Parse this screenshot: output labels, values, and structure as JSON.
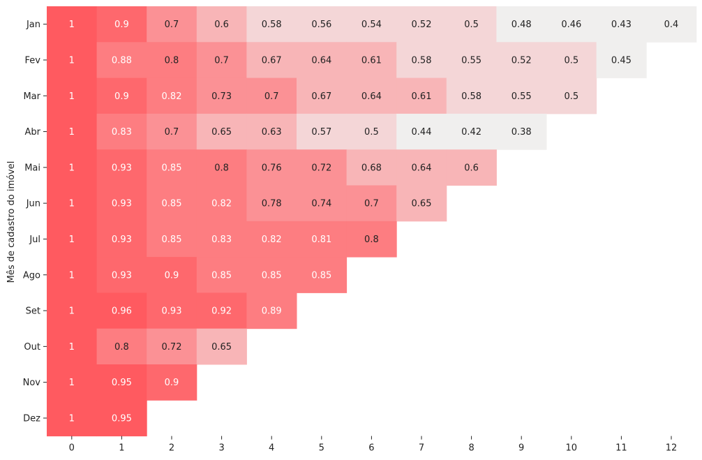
{
  "chart_data": {
    "type": "heatmap",
    "title": "",
    "xlabel": "",
    "ylabel": "Mês de cadastro do imóvel",
    "x_categories": [
      "0",
      "1",
      "2",
      "3",
      "4",
      "5",
      "6",
      "7",
      "8",
      "9",
      "10",
      "11",
      "12"
    ],
    "y_categories": [
      "Jan",
      "Fev",
      "Mar",
      "Abr",
      "Mai",
      "Jun",
      "Jul",
      "Ago",
      "Set",
      "Out",
      "Nov",
      "Dez"
    ],
    "values": [
      [
        1,
        0.9,
        0.7,
        0.6,
        0.58,
        0.56,
        0.54,
        0.52,
        0.5,
        0.48,
        0.46,
        0.43,
        0.4
      ],
      [
        1,
        0.88,
        0.8,
        0.7,
        0.67,
        0.64,
        0.61,
        0.58,
        0.55,
        0.52,
        0.5,
        0.45
      ],
      [
        1,
        0.9,
        0.82,
        0.73,
        0.7,
        0.67,
        0.64,
        0.61,
        0.58,
        0.55,
        0.5
      ],
      [
        1,
        0.83,
        0.7,
        0.65,
        0.63,
        0.57,
        0.5,
        0.44,
        0.42,
        0.38
      ],
      [
        1,
        0.93,
        0.85,
        0.8,
        0.76,
        0.72,
        0.68,
        0.64,
        0.6
      ],
      [
        1,
        0.93,
        0.85,
        0.82,
        0.78,
        0.74,
        0.7,
        0.65
      ],
      [
        1,
        0.93,
        0.85,
        0.83,
        0.82,
        0.81,
        0.8
      ],
      [
        1,
        0.93,
        0.9,
        0.85,
        0.85,
        0.85
      ],
      [
        1,
        0.96,
        0.93,
        0.92,
        0.89
      ],
      [
        1,
        0.8,
        0.72,
        0.65
      ],
      [
        1,
        0.95,
        0.9
      ],
      [
        1,
        0.95
      ]
    ],
    "color_scale": {
      "type": "stepped",
      "stops": [
        {
          "min": 0.0,
          "color": "#f0efee"
        },
        {
          "min": 0.5,
          "color": "#f4d6d7"
        },
        {
          "min": 0.6,
          "color": "#f8b5b7"
        },
        {
          "min": 0.7,
          "color": "#fb9195"
        },
        {
          "min": 0.8,
          "color": "#fd7d81"
        },
        {
          "min": 0.9,
          "color": "#fe686d"
        },
        {
          "min": 0.95,
          "color": "#ff5a60"
        }
      ],
      "dark_text_color": "#222222",
      "light_text_color": "#ffffff",
      "light_text_threshold": 0.8
    },
    "grid": false,
    "legend": "none"
  }
}
